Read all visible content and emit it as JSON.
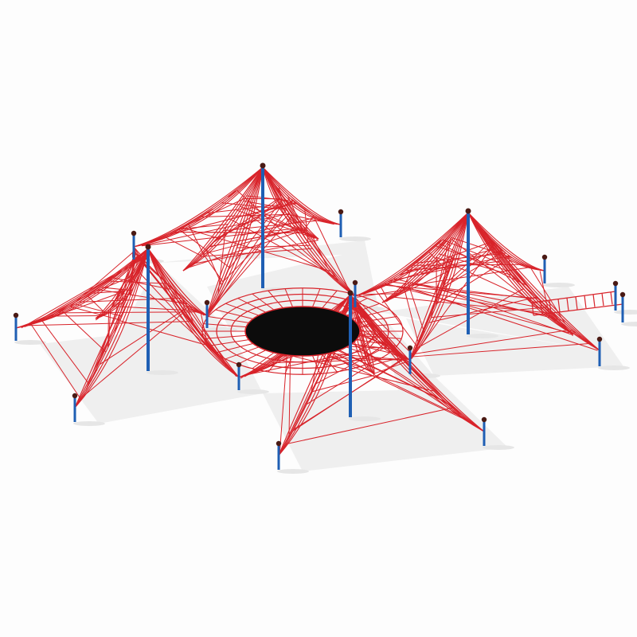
{
  "colors": {
    "background": "#fdfdfd",
    "rope": "#d8232a",
    "post": "#1f5fb4",
    "post_cap": "#4a1a14",
    "trampoline": "#0c0c0c",
    "shadow": "#e6e6e6"
  },
  "icons": [
    "rope-net-playground"
  ]
}
